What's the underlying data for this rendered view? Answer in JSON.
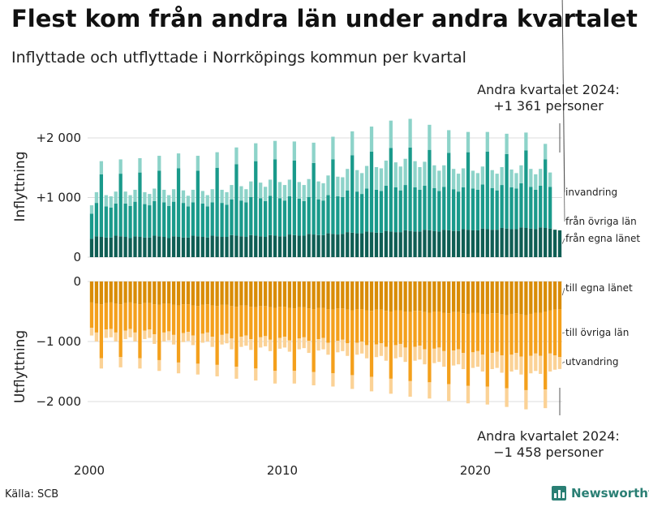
{
  "title": "Flest kom från andra län under andra kvartalet",
  "subtitle": "Inflyttade och utflyttade i Norrköpings kommun per kvartal",
  "source": "Källa: SCB",
  "brand": "Newsworthy",
  "annotations": {
    "top": [
      "Andra kvartalet 2024:",
      "+1 361 personer"
    ],
    "bottom": [
      "Andra kvartalet 2024:",
      "−1 458 personer"
    ]
  },
  "chart_data": {
    "type": "bar",
    "stacked": true,
    "x_start": "2000 Q1",
    "x_end": "2024 Q2",
    "x_ticks": [
      "2000",
      "2010",
      "2020"
    ],
    "panels": [
      {
        "ylabel": "Inflyttning",
        "ylim": [
          0,
          2300
        ],
        "yticks": [
          {
            "value": 2000,
            "label": "+2 000"
          },
          {
            "value": 1000,
            "label": "+1 000"
          },
          {
            "value": 0,
            "label": "0"
          }
        ],
        "series": [
          {
            "name": "från egna länet",
            "color": "#0f5e54",
            "values": [
              310,
              350,
              340,
              330,
              330,
              360,
              350,
              340,
              320,
              350,
              340,
              330,
              330,
              360,
              350,
              340,
              320,
              350,
              340,
              330,
              330,
              360,
              350,
              340,
              330,
              360,
              350,
              340,
              340,
              370,
              360,
              350,
              340,
              370,
              360,
              350,
              340,
              370,
              360,
              350,
              350,
              380,
              370,
              360,
              360,
              390,
              380,
              370,
              370,
              400,
              390,
              380,
              390,
              420,
              410,
              400,
              400,
              430,
              420,
              410,
              410,
              440,
              430,
              420,
              420,
              450,
              440,
              430,
              430,
              460,
              450,
              440,
              430,
              460,
              450,
              440,
              440,
              470,
              460,
              450,
              450,
              480,
              470,
              460,
              460,
              490,
              480,
              470,
              470,
              500,
              490,
              480,
              470,
              500,
              490,
              480,
              460,
              450
            ]
          },
          {
            "name": "från övriga län",
            "color": "#1a9a8b",
            "values": [
              420,
              560,
              1050,
              520,
              500,
              540,
              1050,
              560,
              540,
              580,
              1080,
              560,
              540,
              580,
              1100,
              580,
              540,
              580,
              1150,
              580,
              520,
              560,
              1100,
              560,
              520,
              560,
              1150,
              570,
              540,
              600,
              1200,
              600,
              580,
              640,
              1250,
              640,
              600,
              660,
              1280,
              640,
              600,
              640,
              1250,
              620,
              580,
              620,
              1200,
              600,
              580,
              640,
              1250,
              640,
              620,
              700,
              1300,
              700,
              660,
              720,
              1350,
              720,
              700,
              760,
              1400,
              750,
              700,
              760,
              1400,
              740,
              700,
              740,
              1350,
              720,
              680,
              720,
              1300,
              700,
              660,
              700,
              1300,
              700,
              680,
              740,
              1300,
              700,
              660,
              720,
              1250,
              700,
              680,
              740,
              1300,
              700,
              660,
              700,
              1150,
              700
            ]
          },
          {
            "name": "invandring",
            "color": "#8dd3c9",
            "values": [
              140,
              180,
              220,
              190,
              190,
              200,
              240,
              200,
              180,
              200,
              240,
              200,
              190,
              210,
              250,
              210,
              180,
              210,
              250,
              210,
              180,
              210,
              250,
              210,
              190,
              220,
              260,
              220,
              210,
              240,
              280,
              240,
              220,
              260,
              300,
              260,
              240,
              270,
              310,
              270,
              260,
              280,
              320,
              280,
              270,
              300,
              340,
              300,
              290,
              330,
              380,
              330,
              330,
              360,
              400,
              360,
              350,
              380,
              420,
              380,
              380,
              420,
              460,
              420,
              400,
              440,
              480,
              440,
              380,
              400,
              420,
              380,
              340,
              360,
              380,
              340,
              300,
              320,
              340,
              300,
              280,
              300,
              330,
              300,
              280,
              300,
              340,
              300,
              260,
              300,
              300,
              300,
              260,
              280,
              260,
              240,
              200,
              211
            ]
          }
        ]
      },
      {
        "ylabel": "Utflyttning",
        "ylim": [
          -2300,
          0
        ],
        "yticks": [
          {
            "value": 0,
            "label": "0"
          },
          {
            "value": -1000,
            "label": "−1 000"
          },
          {
            "value": -2000,
            "label": "−2 000"
          }
        ],
        "series": [
          {
            "name": "till egna länet",
            "color": "#d98c06",
            "values": [
              -350,
              -370,
              -380,
              -360,
              -350,
              -370,
              -380,
              -360,
              -350,
              -370,
              -380,
              -360,
              -360,
              -380,
              -390,
              -370,
              -370,
              -390,
              -400,
              -380,
              -380,
              -400,
              -410,
              -390,
              -380,
              -400,
              -410,
              -390,
              -390,
              -410,
              -420,
              -400,
              -400,
              -420,
              -430,
              -410,
              -410,
              -430,
              -440,
              -420,
              -420,
              -440,
              -450,
              -430,
              -430,
              -450,
              -460,
              -440,
              -440,
              -460,
              -470,
              -450,
              -450,
              -470,
              -480,
              -460,
              -460,
              -480,
              -490,
              -470,
              -470,
              -490,
              -500,
              -480,
              -480,
              -500,
              -510,
              -490,
              -490,
              -510,
              -520,
              -500,
              -500,
              -520,
              -530,
              -510,
              -510,
              -530,
              -540,
              -520,
              -520,
              -540,
              -550,
              -530,
              -530,
              -550,
              -560,
              -540,
              -530,
              -550,
              -560,
              -540,
              -520,
              -520,
              -500,
              -480,
              -470,
              -460
            ]
          },
          {
            "name": "till övriga län",
            "color": "#f4a01c",
            "values": [
              -420,
              -480,
              -900,
              -440,
              -440,
              -480,
              -880,
              -460,
              -440,
              -480,
              -900,
              -460,
              -440,
              -500,
              -920,
              -480,
              -460,
              -500,
              -950,
              -480,
              -460,
              -500,
              -960,
              -480,
              -470,
              -520,
              -980,
              -500,
              -480,
              -540,
              -1000,
              -520,
              -500,
              -540,
              -1020,
              -520,
              -500,
              -540,
              -1050,
              -520,
              -500,
              -540,
              -1040,
              -520,
              -500,
              -540,
              -1050,
              -520,
              -500,
              -560,
              -1060,
              -540,
              -520,
              -560,
              -1080,
              -560,
              -540,
              -580,
              -1100,
              -580,
              -560,
              -600,
              -1120,
              -580,
              -560,
              -600,
              -1150,
              -600,
              -580,
              -620,
              -1160,
              -620,
              -600,
              -640,
              -1180,
              -640,
              -620,
              -660,
              -1200,
              -660,
              -640,
              -680,
              -1200,
              -660,
              -640,
              -680,
              -1220,
              -680,
              -660,
              -700,
              -1250,
              -700,
              -680,
              -720,
              -1300,
              -720,
              -760,
              -800
            ]
          },
          {
            "name": "utvandring",
            "color": "#fbd296",
            "values": [
              -130,
              -150,
              -170,
              -140,
              -140,
              -150,
              -170,
              -140,
              -140,
              -150,
              -170,
              -140,
              -140,
              -160,
              -180,
              -150,
              -150,
              -160,
              -180,
              -150,
              -150,
              -160,
              -180,
              -150,
              -150,
              -170,
              -190,
              -160,
              -160,
              -180,
              -200,
              -170,
              -170,
              -180,
              -200,
              -170,
              -170,
              -190,
              -210,
              -180,
              -180,
              -190,
              -210,
              -180,
              -180,
              -200,
              -220,
              -190,
              -190,
              -200,
              -220,
              -190,
              -190,
              -210,
              -230,
              -200,
              -200,
              -220,
              -240,
              -210,
              -210,
              -230,
              -250,
              -220,
              -220,
              -240,
              -260,
              -230,
              -230,
              -250,
              -270,
              -240,
              -240,
              -260,
              -280,
              -250,
              -250,
              -270,
              -290,
              -260,
              -260,
              -280,
              -300,
              -270,
              -270,
              -290,
              -310,
              -280,
              -280,
              -300,
              -320,
              -290,
              -290,
              -300,
              -310,
              -300,
              -240,
              -198
            ]
          }
        ]
      }
    ]
  }
}
